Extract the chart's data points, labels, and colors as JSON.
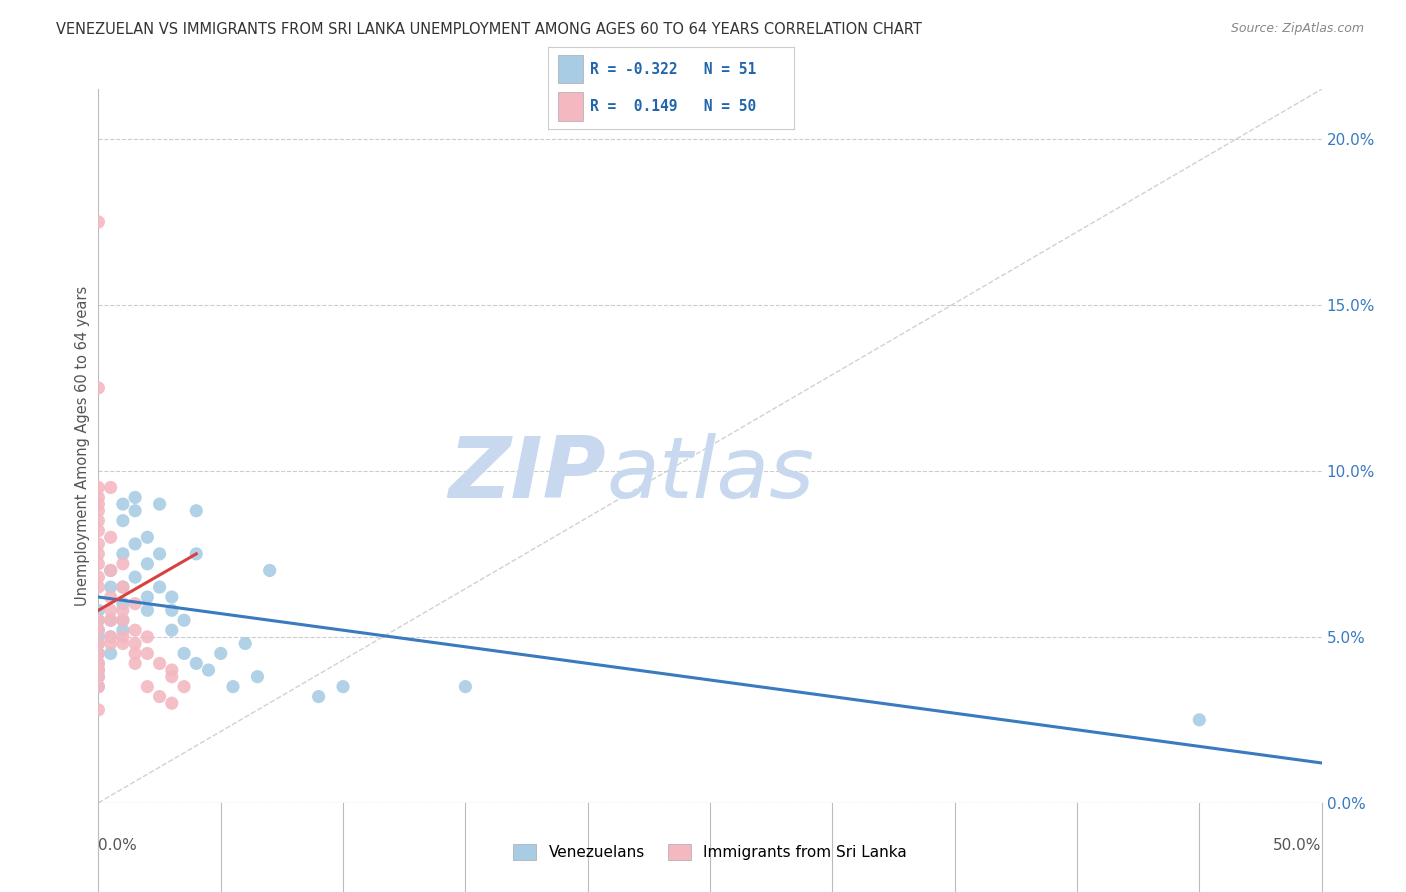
{
  "title": "VENEZUELAN VS IMMIGRANTS FROM SRI LANKA UNEMPLOYMENT AMONG AGES 60 TO 64 YEARS CORRELATION CHART",
  "source": "Source: ZipAtlas.com",
  "ylabel": "Unemployment Among Ages 60 to 64 years",
  "ytick_values": [
    0.0,
    5.0,
    10.0,
    15.0,
    20.0
  ],
  "xlim": [
    0.0,
    50.0
  ],
  "ylim": [
    0.0,
    21.5
  ],
  "legend_blue_R": "-0.322",
  "legend_blue_N": "51",
  "legend_pink_R": "0.149",
  "legend_pink_N": "50",
  "blue_color": "#a8cce4",
  "pink_color": "#f4b8c1",
  "blue_line_color": "#3a7abf",
  "pink_line_color": "#d94040",
  "diag_line_color": "#cccccc",
  "background_color": "#ffffff",
  "grid_color": "#cccccc",
  "watermark_zip": "ZIP",
  "watermark_atlas": "atlas",
  "watermark_color": "#dde8f5",
  "venezuelan_x": [
    0.0,
    0.0,
    0.0,
    0.0,
    0.0,
    0.0,
    0.0,
    0.0,
    0.0,
    0.0,
    0.5,
    0.5,
    0.5,
    0.5,
    0.5,
    1.0,
    1.0,
    1.0,
    1.0,
    1.0,
    1.0,
    1.0,
    1.5,
    1.5,
    1.5,
    1.5,
    2.0,
    2.0,
    2.0,
    2.0,
    2.5,
    2.5,
    2.5,
    3.0,
    3.0,
    3.0,
    3.5,
    3.5,
    4.0,
    4.0,
    4.0,
    4.5,
    5.0,
    5.5,
    6.0,
    6.5,
    7.0,
    9.0,
    10.0,
    15.0,
    45.0
  ],
  "venezuelan_y": [
    5.0,
    5.2,
    5.5,
    5.8,
    4.8,
    4.5,
    4.2,
    4.0,
    3.8,
    3.5,
    6.5,
    7.0,
    5.5,
    5.0,
    4.5,
    8.5,
    9.0,
    7.5,
    6.5,
    6.0,
    5.5,
    5.2,
    9.2,
    8.8,
    7.8,
    6.8,
    8.0,
    7.2,
    6.2,
    5.8,
    9.0,
    7.5,
    6.5,
    6.2,
    5.8,
    5.2,
    5.5,
    4.5,
    8.8,
    7.5,
    4.2,
    4.0,
    4.5,
    3.5,
    4.8,
    3.8,
    7.0,
    3.2,
    3.5,
    3.5,
    2.5
  ],
  "srilanka_x": [
    0.0,
    0.0,
    0.0,
    0.0,
    0.0,
    0.0,
    0.0,
    0.0,
    0.0,
    0.0,
    0.0,
    0.0,
    0.0,
    0.0,
    0.0,
    0.5,
    0.5,
    0.5,
    0.5,
    0.5,
    1.0,
    1.0,
    1.0,
    1.0,
    1.5,
    1.5,
    1.5,
    2.0,
    2.0,
    2.5,
    3.0,
    3.0,
    3.5,
    0.0,
    0.0,
    0.0,
    0.0,
    0.0,
    0.5,
    0.5,
    0.5,
    1.0,
    1.0,
    1.5,
    1.5,
    2.0,
    2.5,
    3.0,
    0.0,
    0.0
  ],
  "srilanka_y": [
    17.5,
    12.5,
    9.5,
    9.2,
    9.0,
    8.8,
    8.5,
    8.2,
    7.8,
    7.5,
    7.2,
    6.8,
    6.5,
    5.5,
    5.2,
    9.5,
    8.0,
    7.0,
    5.8,
    5.0,
    7.2,
    6.5,
    5.5,
    4.8,
    6.0,
    5.2,
    4.5,
    5.0,
    4.5,
    4.2,
    4.0,
    3.8,
    3.5,
    4.8,
    4.5,
    4.2,
    4.0,
    3.8,
    6.2,
    5.5,
    4.8,
    5.8,
    5.0,
    4.8,
    4.2,
    3.5,
    3.2,
    3.0,
    3.5,
    2.8
  ],
  "ven_trend_x0": 0.0,
  "ven_trend_x1": 50.0,
  "ven_trend_y0": 6.2,
  "ven_trend_y1": 1.2,
  "sri_trend_x0": 0.0,
  "sri_trend_x1": 4.0,
  "sri_trend_y0": 5.8,
  "sri_trend_y1": 7.5
}
